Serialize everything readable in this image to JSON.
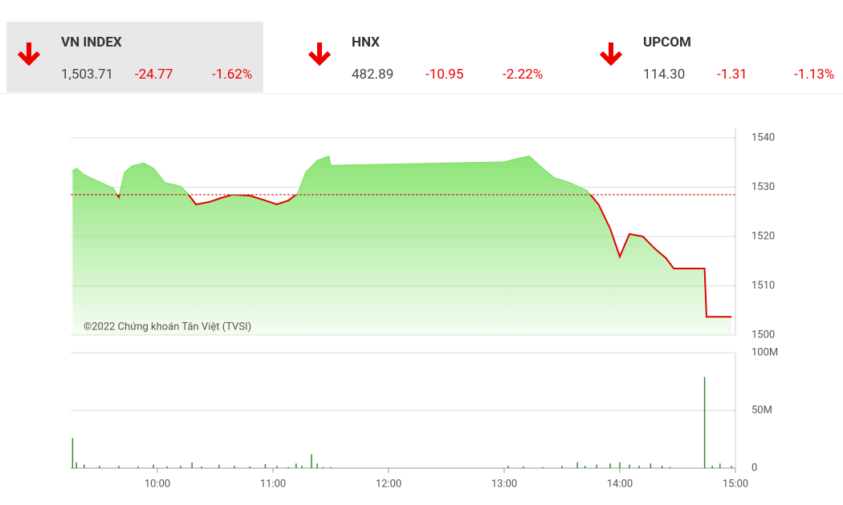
{
  "indices": [
    {
      "name": "VN INDEX",
      "value": "1,503.71",
      "change": "-24.77",
      "percent": "-1.62%"
    },
    {
      "name": "HNX",
      "value": "482.89",
      "change": "-10.95",
      "percent": "-2.22%"
    },
    {
      "name": "UPCOM",
      "value": "114.30",
      "change": "-1.31",
      "percent": "-1.13%"
    }
  ],
  "chart_data": [
    {
      "type": "line",
      "annotation": "©2022 Chứng khoán Tân Việt (TVSI)",
      "x": [
        556,
        558,
        562,
        568,
        577,
        580,
        583,
        587,
        593,
        598,
        604,
        612,
        616,
        620,
        627,
        633,
        639,
        648,
        656,
        662,
        668,
        673,
        677,
        683,
        689,
        690,
        780,
        787,
        793,
        800,
        806,
        814,
        823,
        829,
        835,
        840,
        845,
        852,
        858,
        864,
        868,
        884,
        885,
        898
      ],
      "values": [
        1533.3,
        1533.8,
        1532.5,
        1531.4,
        1529.8,
        1528.0,
        1533.0,
        1534.3,
        1534.9,
        1533.8,
        1530.9,
        1530.2,
        1528.6,
        1526.5,
        1527.0,
        1527.8,
        1528.5,
        1528.3,
        1527.3,
        1526.5,
        1527.3,
        1528.8,
        1533.0,
        1535.4,
        1536.3,
        1534.4,
        1535.1,
        1535.8,
        1536.3,
        1533.8,
        1531.9,
        1530.9,
        1529.3,
        1526.5,
        1521.6,
        1515.9,
        1520.5,
        1520.0,
        1517.6,
        1515.6,
        1513.5,
        1513.5,
        1503.7,
        1503.71
      ],
      "color": "#e00000",
      "area_color": "#86e26e",
      "reference": 1528.48,
      "xlim": [
        555,
        900
      ],
      "ylim": [
        1500,
        1540
      ],
      "yticks": [
        1500,
        1510,
        1520,
        1530,
        1540
      ],
      "grid": true
    },
    {
      "type": "bar",
      "x": [
        556,
        558,
        562,
        570,
        580,
        590,
        598,
        605,
        612,
        618,
        623,
        632,
        640,
        648,
        656,
        662,
        668,
        672,
        675,
        680,
        683,
        686,
        690,
        782,
        790,
        800,
        810,
        818,
        822,
        828,
        835,
        840,
        845,
        850,
        856,
        862,
        866,
        884,
        888,
        892,
        898
      ],
      "values": [
        26,
        5,
        3,
        2,
        2,
        1.5,
        3,
        1.5,
        2,
        5,
        1.5,
        3,
        2,
        1.5,
        3.5,
        2,
        1,
        4,
        2,
        12,
        4,
        1,
        1,
        2,
        1.5,
        1,
        2,
        5,
        2,
        3,
        4,
        5,
        3,
        2,
        4,
        2,
        1,
        79,
        2,
        4,
        2
      ],
      "color": "#2e8b2e",
      "xlim": [
        555,
        900
      ],
      "xticks": [
        {
          "value": 600,
          "label": "10:00"
        },
        {
          "value": 660,
          "label": "11:00"
        },
        {
          "value": 720,
          "label": "12:00"
        },
        {
          "value": 780,
          "label": "13:00"
        },
        {
          "value": 840,
          "label": "14:00"
        },
        {
          "value": 900,
          "label": "15:00"
        }
      ],
      "ylim": [
        0,
        100
      ],
      "yticks": [
        0,
        {
          "value": 50,
          "label": "50M"
        },
        {
          "value": 100,
          "label": "100M"
        }
      ],
      "grid": true
    }
  ]
}
